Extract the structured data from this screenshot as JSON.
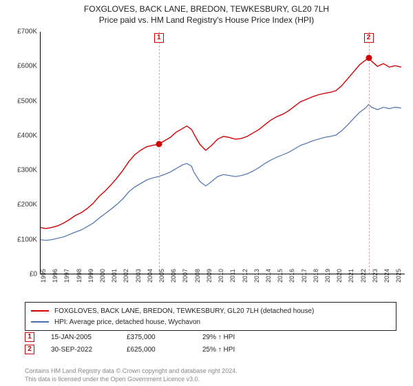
{
  "title": "FOXGLOVES, BACK LANE, BREDON, TEWKESBURY, GL20 7LH",
  "subtitle": "Price paid vs. HM Land Registry's House Price Index (HPI)",
  "chart": {
    "type": "line",
    "background_color": "#ffffff",
    "grid_color": "#e8e8e8",
    "axis_color": "#000000",
    "label_fontsize": 10,
    "title_fontsize": 12,
    "ylim": [
      0,
      700000
    ],
    "ytick_step": 100000,
    "yticks": [
      "£0",
      "£100K",
      "£200K",
      "£300K",
      "£400K",
      "£500K",
      "£600K",
      "£700K"
    ],
    "xlim": [
      1995,
      2025.8
    ],
    "xticks": [
      1995,
      1996,
      1997,
      1998,
      1999,
      2000,
      2001,
      2002,
      2003,
      2004,
      2005,
      2006,
      2007,
      2008,
      2009,
      2010,
      2011,
      2012,
      2013,
      2014,
      2015,
      2016,
      2017,
      2018,
      2019,
      2020,
      2021,
      2022,
      2023,
      2024,
      2025
    ],
    "series": [
      {
        "name": "series_price",
        "label": "FOXGLOVES, BACK LANE, BREDON, TEWKESBURY, GL20 7LH (detached house)",
        "color": "#d00000",
        "line_width": 1.4,
        "data": [
          [
            1995,
            135000
          ],
          [
            1995.5,
            132000
          ],
          [
            1996,
            135000
          ],
          [
            1996.5,
            140000
          ],
          [
            1997,
            148000
          ],
          [
            1997.5,
            158000
          ],
          [
            1998,
            170000
          ],
          [
            1998.5,
            178000
          ],
          [
            1999,
            190000
          ],
          [
            1999.5,
            205000
          ],
          [
            2000,
            225000
          ],
          [
            2000.5,
            240000
          ],
          [
            2001,
            258000
          ],
          [
            2001.5,
            278000
          ],
          [
            2002,
            300000
          ],
          [
            2002.5,
            325000
          ],
          [
            2003,
            345000
          ],
          [
            2003.5,
            358000
          ],
          [
            2004,
            368000
          ],
          [
            2004.5,
            372000
          ],
          [
            2005,
            375000
          ],
          [
            2005.5,
            385000
          ],
          [
            2006,
            395000
          ],
          [
            2006.5,
            410000
          ],
          [
            2007,
            420000
          ],
          [
            2007.4,
            428000
          ],
          [
            2007.8,
            418000
          ],
          [
            2008,
            405000
          ],
          [
            2008.5,
            375000
          ],
          [
            2009,
            358000
          ],
          [
            2009.5,
            372000
          ],
          [
            2010,
            390000
          ],
          [
            2010.5,
            398000
          ],
          [
            2011,
            395000
          ],
          [
            2011.5,
            390000
          ],
          [
            2012,
            392000
          ],
          [
            2012.5,
            398000
          ],
          [
            2013,
            408000
          ],
          [
            2013.5,
            418000
          ],
          [
            2014,
            432000
          ],
          [
            2014.5,
            445000
          ],
          [
            2015,
            455000
          ],
          [
            2015.5,
            462000
          ],
          [
            2016,
            472000
          ],
          [
            2016.5,
            485000
          ],
          [
            2017,
            498000
          ],
          [
            2017.5,
            505000
          ],
          [
            2018,
            512000
          ],
          [
            2018.5,
            518000
          ],
          [
            2019,
            522000
          ],
          [
            2019.5,
            525000
          ],
          [
            2020,
            530000
          ],
          [
            2020.5,
            545000
          ],
          [
            2021,
            565000
          ],
          [
            2021.5,
            585000
          ],
          [
            2022,
            605000
          ],
          [
            2022.5,
            618000
          ],
          [
            2022.75,
            625000
          ],
          [
            2023,
            615000
          ],
          [
            2023.5,
            600000
          ],
          [
            2024,
            608000
          ],
          [
            2024.5,
            598000
          ],
          [
            2025,
            602000
          ],
          [
            2025.5,
            598000
          ]
        ]
      },
      {
        "name": "series_hpi",
        "label": "HPI: Average price, detached house, Wychavon",
        "color": "#4a6fb0",
        "line_width": 1.2,
        "data": [
          [
            1995,
            100000
          ],
          [
            1995.5,
            98000
          ],
          [
            1996,
            100000
          ],
          [
            1996.5,
            104000
          ],
          [
            1997,
            108000
          ],
          [
            1997.5,
            115000
          ],
          [
            1998,
            122000
          ],
          [
            1998.5,
            128000
          ],
          [
            1999,
            138000
          ],
          [
            1999.5,
            148000
          ],
          [
            2000,
            162000
          ],
          [
            2000.5,
            175000
          ],
          [
            2001,
            188000
          ],
          [
            2001.5,
            202000
          ],
          [
            2002,
            218000
          ],
          [
            2002.5,
            238000
          ],
          [
            2003,
            252000
          ],
          [
            2003.5,
            262000
          ],
          [
            2004,
            272000
          ],
          [
            2004.5,
            278000
          ],
          [
            2005,
            282000
          ],
          [
            2005.5,
            288000
          ],
          [
            2006,
            295000
          ],
          [
            2006.5,
            305000
          ],
          [
            2007,
            315000
          ],
          [
            2007.4,
            320000
          ],
          [
            2007.8,
            312000
          ],
          [
            2008,
            295000
          ],
          [
            2008.5,
            268000
          ],
          [
            2009,
            255000
          ],
          [
            2009.5,
            268000
          ],
          [
            2010,
            282000
          ],
          [
            2010.5,
            288000
          ],
          [
            2011,
            285000
          ],
          [
            2011.5,
            282000
          ],
          [
            2012,
            285000
          ],
          [
            2012.5,
            290000
          ],
          [
            2013,
            298000
          ],
          [
            2013.5,
            308000
          ],
          [
            2014,
            320000
          ],
          [
            2014.5,
            330000
          ],
          [
            2015,
            338000
          ],
          [
            2015.5,
            345000
          ],
          [
            2016,
            352000
          ],
          [
            2016.5,
            362000
          ],
          [
            2017,
            372000
          ],
          [
            2017.5,
            378000
          ],
          [
            2018,
            385000
          ],
          [
            2018.5,
            390000
          ],
          [
            2019,
            395000
          ],
          [
            2019.5,
            398000
          ],
          [
            2020,
            402000
          ],
          [
            2020.5,
            415000
          ],
          [
            2021,
            432000
          ],
          [
            2021.5,
            450000
          ],
          [
            2022,
            468000
          ],
          [
            2022.5,
            480000
          ],
          [
            2022.75,
            490000
          ],
          [
            2023,
            482000
          ],
          [
            2023.5,
            475000
          ],
          [
            2024,
            482000
          ],
          [
            2024.5,
            478000
          ],
          [
            2025,
            482000
          ],
          [
            2025.5,
            480000
          ]
        ]
      }
    ],
    "markers": [
      {
        "id": "1",
        "x": 2005.04,
        "y": 375000
      },
      {
        "id": "2",
        "x": 2022.75,
        "y": 625000
      }
    ],
    "marker_line_color": "#e0a0a0",
    "marker_box_border": "#d00000",
    "marker_box_text": "#d00000",
    "marker_dot_color": "#d00000"
  },
  "legend": {
    "border_color": "#222222",
    "fontsize": 10
  },
  "transactions": [
    {
      "id": "1",
      "date": "15-JAN-2005",
      "price": "£375,000",
      "vs_hpi": "29% ↑ HPI"
    },
    {
      "id": "2",
      "date": "30-SEP-2022",
      "price": "£625,000",
      "vs_hpi": "25% ↑ HPI"
    }
  ],
  "footer_line1": "Contains HM Land Registry data © Crown copyright and database right 2024.",
  "footer_line2": "This data is licensed under the Open Government Licence v3.0.",
  "footer_color": "#888888"
}
